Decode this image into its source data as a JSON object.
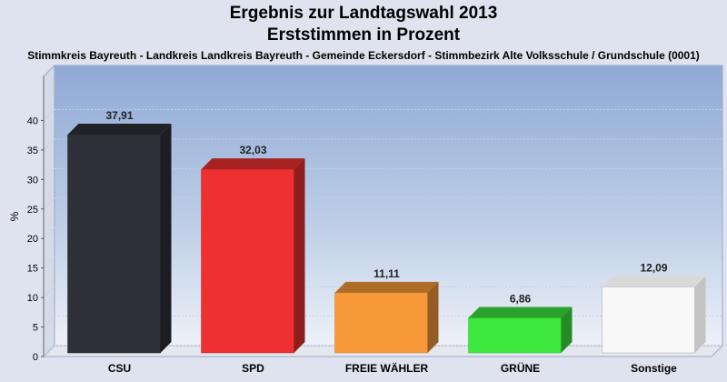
{
  "title_line1": "Ergebnis zur Landtagswahl 2013",
  "title_line2": "Erststimmen in Prozent",
  "subtitle": "Stimmkreis Bayreuth - Landkreis Landkreis Bayreuth - Gemeinde Eckersdorf - Stimmbezirk Alte Volksschule / Grundschule (0001)",
  "chart_data": {
    "type": "bar",
    "title": "Ergebnis zur Landtagswahl 2013 Erststimmen in Prozent",
    "subtitle": "Stimmkreis Bayreuth - Landkreis Landkreis Bayreuth - Gemeinde Eckersdorf - Stimmbezirk Alte Volksschule / Grundschule (0001)",
    "xlabel": "",
    "ylabel": "%",
    "ylim": [
      0,
      45
    ],
    "yticks": [
      0,
      5,
      10,
      15,
      20,
      25,
      30,
      35,
      40
    ],
    "grid": true,
    "legend": "none",
    "categories": [
      "CSU",
      "SPD",
      "FREIE WÄHLER",
      "GRÜNE",
      "Sonstige"
    ],
    "values": [
      37.91,
      32.03,
      11.11,
      6.86,
      12.09
    ],
    "value_labels": [
      "37,91",
      "32,03",
      "11,11",
      "6,86",
      "12,09"
    ],
    "colors": [
      "#2e3138",
      "#ee3030",
      "#f99a3a",
      "#3ee83e",
      "#f8f8f8"
    ]
  }
}
